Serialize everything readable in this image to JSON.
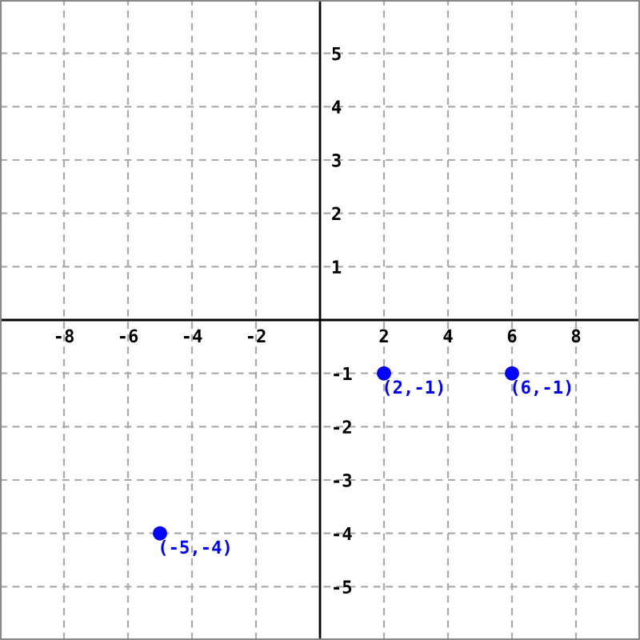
{
  "chart_data": {
    "type": "scatter",
    "xlim": [
      -10,
      10
    ],
    "ylim": [
      -6,
      6
    ],
    "xticks": [
      -8,
      -6,
      -4,
      -2,
      2,
      4,
      6,
      8
    ],
    "yticks": [
      -5,
      -4,
      -3,
      -2,
      -1,
      1,
      2,
      3,
      4,
      5
    ],
    "grid": true,
    "marker": "circle",
    "series": [
      {
        "color": "#0000ff",
        "x": [
          2,
          6,
          -5
        ],
        "values": [
          -1,
          -1,
          -4
        ],
        "value_labels": [
          "(2,-1)",
          "(6,-1)",
          "(-5,-4)"
        ]
      }
    ]
  }
}
